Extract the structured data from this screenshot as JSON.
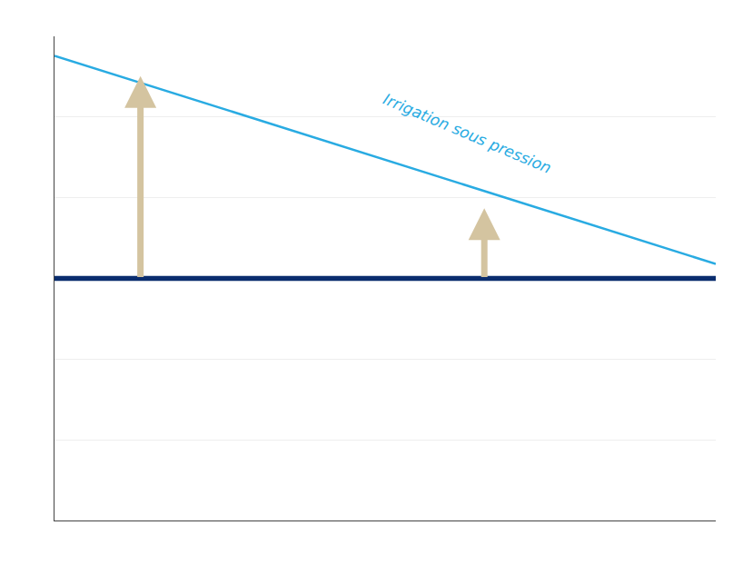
{
  "chart_data": {
    "type": "line",
    "xlim": [
      0,
      10
    ],
    "ylim": [
      0,
      10
    ],
    "xticks": [],
    "yticks": [
      0,
      1.6666666666666667,
      3.3333333333333335,
      5,
      6.666666666666667,
      8.333333333333334,
      10
    ],
    "grid": true,
    "tick_labels": false,
    "series": [
      {
        "color": "#0A2D6E",
        "x": [
          0,
          10
        ],
        "values": [
          5.0,
          5.0
        ]
      },
      {
        "color": "#29ABE2",
        "x": [
          0,
          10
        ],
        "values": [
          9.6,
          5.3
        ]
      }
    ],
    "arrows": [
      {
        "x": 1.3,
        "from": 5.0,
        "to": 9.18,
        "color": "#D4C4A0"
      },
      {
        "x": 6.5,
        "from": 5.0,
        "to": 6.45,
        "color": "#D4C4A0"
      }
    ],
    "annotations": [
      {
        "text": "Irrigation sous pression",
        "x": 4.9,
        "y": 7.05,
        "color": "#29ABE2"
      }
    ]
  }
}
